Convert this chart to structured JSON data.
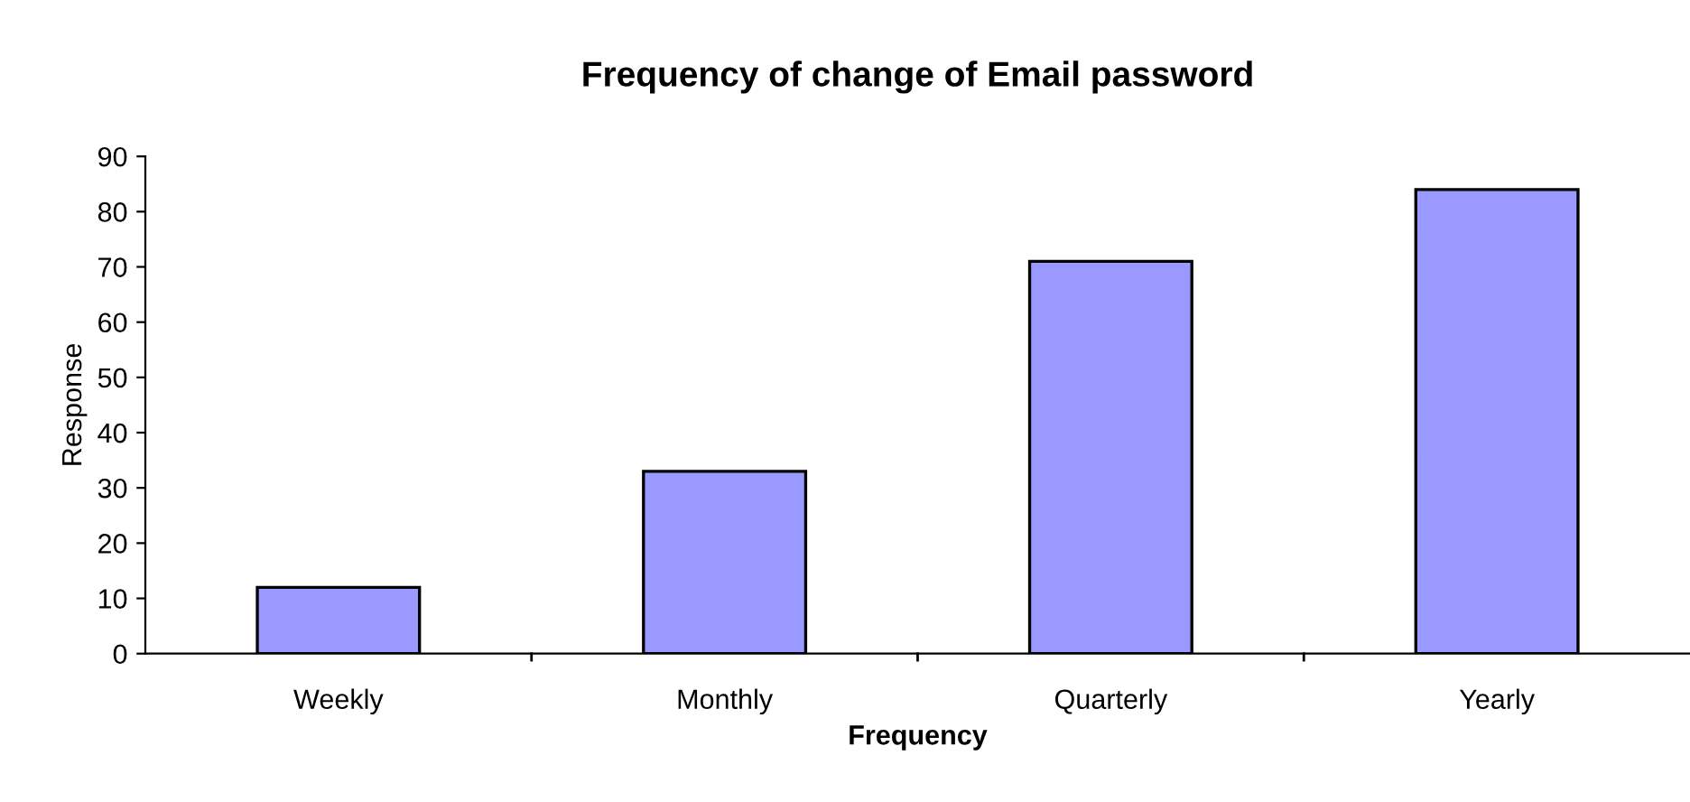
{
  "chart_data": {
    "type": "bar",
    "title": "Frequency of change of Email password",
    "xlabel": "Frequency",
    "ylabel": "Response",
    "categories": [
      "Weekly",
      "Monthly",
      "Quarterly",
      "Yearly"
    ],
    "values": [
      12,
      33,
      71,
      84
    ],
    "color": "#9999ff",
    "ylim": [
      0,
      90
    ],
    "yticks": [
      0,
      10,
      20,
      30,
      40,
      50,
      60,
      70,
      80,
      90
    ],
    "grid": false,
    "legend": false
  }
}
